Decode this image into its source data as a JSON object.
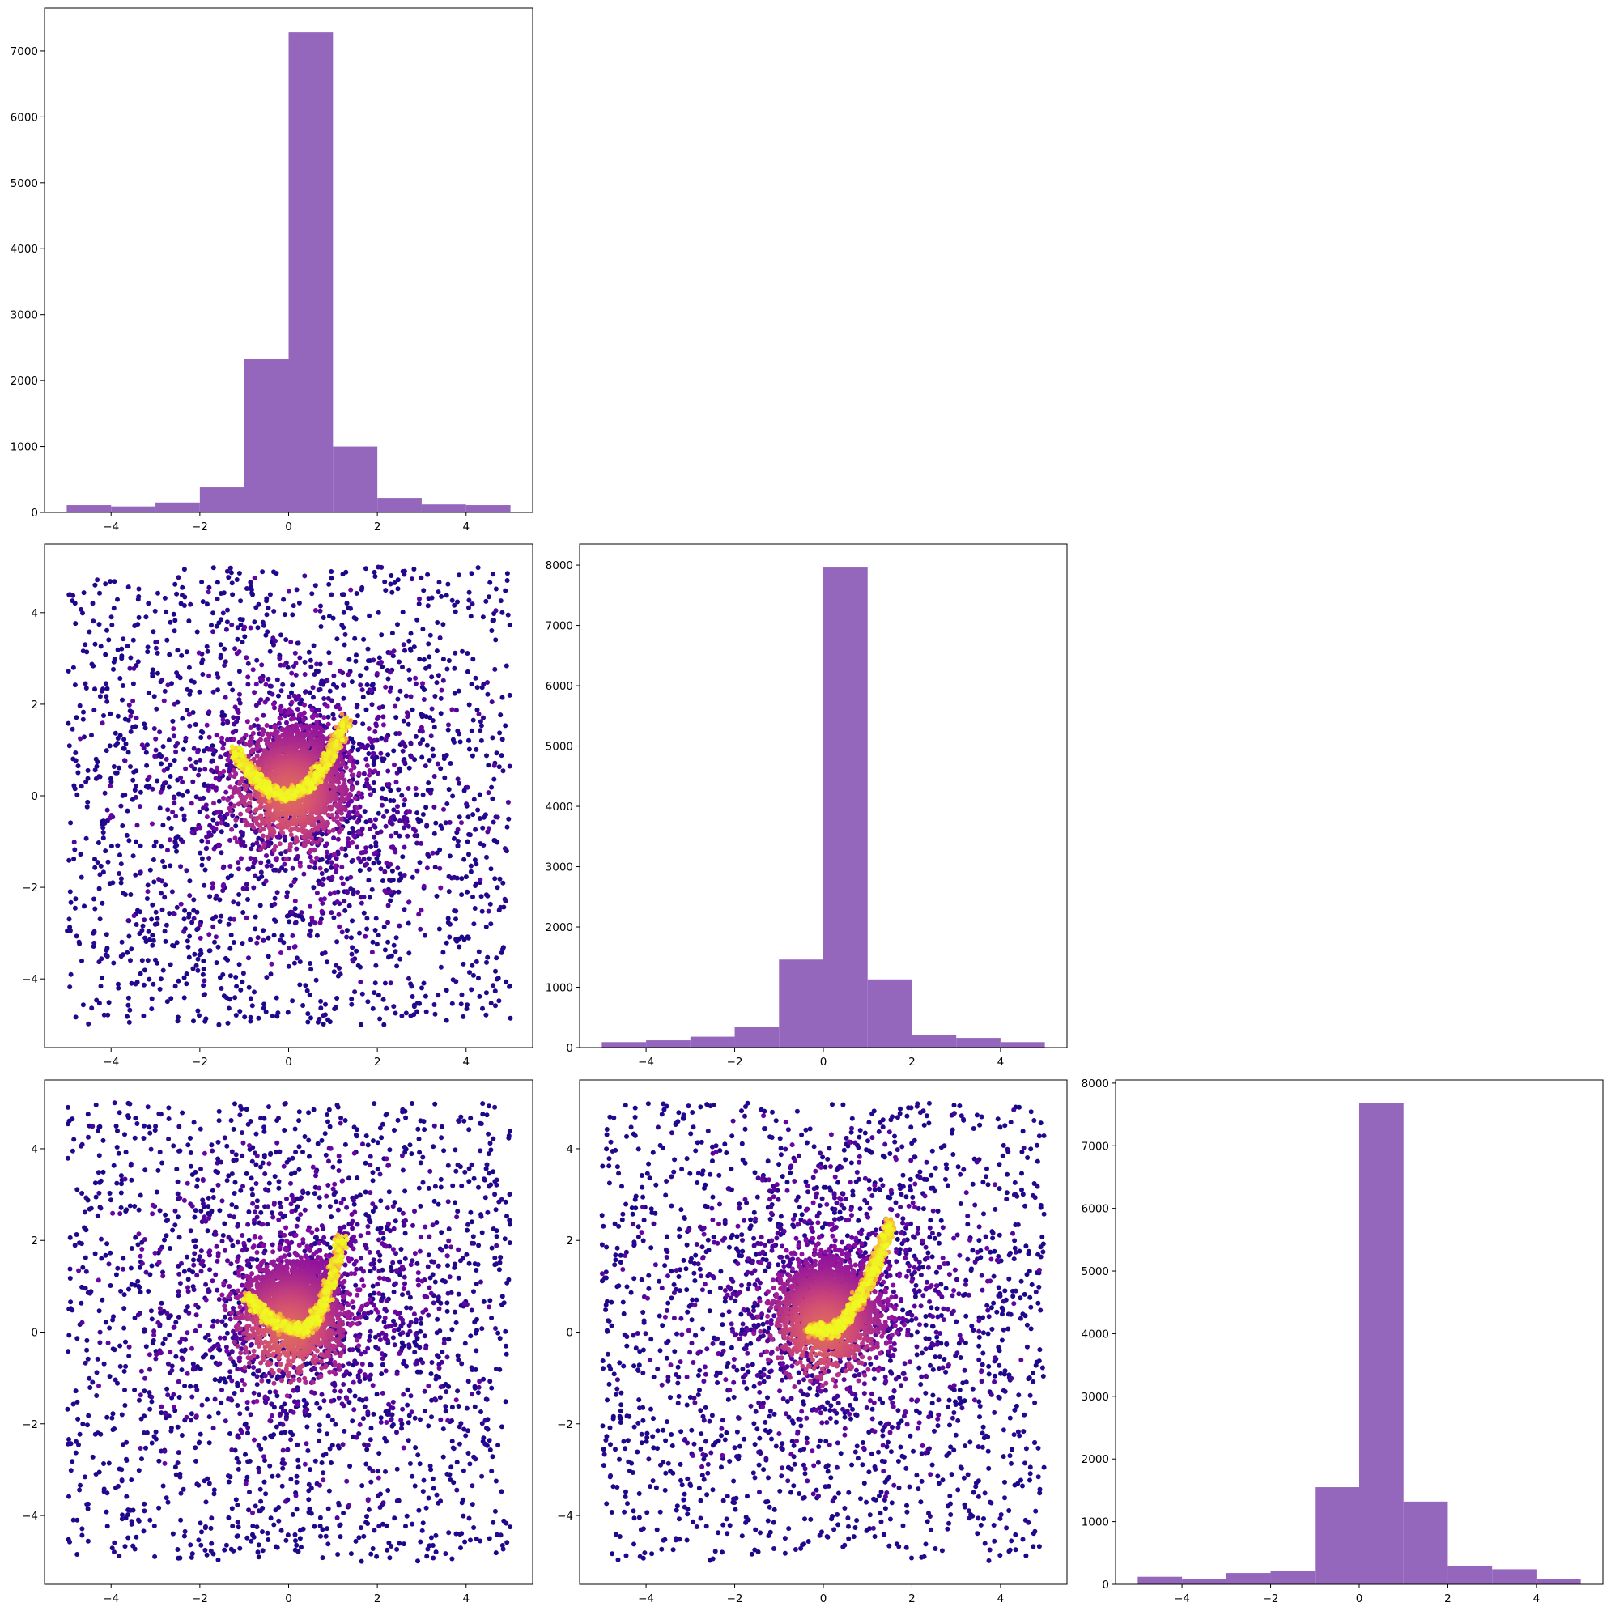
{
  "chart_data": [
    {
      "type": "bar",
      "panel": "row1-col1-histogram",
      "bin_edges": [
        -5,
        -4,
        -3,
        -2,
        -1,
        0,
        1,
        2,
        3,
        4,
        5
      ],
      "values": [
        110,
        90,
        150,
        380,
        2330,
        7280,
        1000,
        220,
        120,
        110
      ],
      "color": "#9467bd",
      "xlim": [
        -5.5,
        5.5
      ],
      "ylim": [
        0,
        7650
      ],
      "xticks": [
        -4,
        -2,
        0,
        2,
        4
      ],
      "xtick_labels": [
        "−4",
        "−2",
        "0",
        "2",
        "4"
      ],
      "yticks": [
        0,
        1000,
        2000,
        3000,
        4000,
        5000,
        6000,
        7000
      ],
      "ytick_labels": [
        "0",
        "1000",
        "2000",
        "3000",
        "4000",
        "5000",
        "6000",
        "7000"
      ]
    },
    {
      "type": "scatter",
      "panel": "row2-col1-scatter",
      "points": "≈10000 samples; uniform background over [-5,5]² plus dense core near origin and a bright curved ridge (parabola-like) ending near (1.3, 1.6)",
      "colormap": "plasma (colored by local density)",
      "ridge": {
        "x_range": [
          -1.2,
          1.3
        ],
        "curve": "y ≈ 0.9·x² for x < 0; rising to 1.6 at x = 1.3"
      },
      "xlim": [
        -5.5,
        5.5
      ],
      "ylim": [
        -5.5,
        5.5
      ],
      "xticks": [
        -4,
        -2,
        0,
        2,
        4
      ],
      "xtick_labels": [
        "−4",
        "−2",
        "0",
        "2",
        "4"
      ],
      "yticks": [
        -4,
        -2,
        0,
        2,
        4
      ],
      "ytick_labels": [
        "−4",
        "−2",
        "0",
        "2",
        "4"
      ]
    },
    {
      "type": "bar",
      "panel": "row2-col2-histogram",
      "bin_edges": [
        -5,
        -4,
        -3,
        -2,
        -1,
        0,
        1,
        2,
        3,
        4,
        5
      ],
      "values": [
        90,
        120,
        180,
        340,
        1460,
        7960,
        1130,
        210,
        160,
        90
      ],
      "color": "#9467bd",
      "xlim": [
        -5.5,
        5.5
      ],
      "ylim": [
        0,
        8350
      ],
      "xticks": [
        -4,
        -2,
        0,
        2,
        4
      ],
      "xtick_labels": [
        "−4",
        "−2",
        "0",
        "2",
        "4"
      ],
      "yticks": [
        0,
        1000,
        2000,
        3000,
        4000,
        5000,
        6000,
        7000,
        8000
      ],
      "ytick_labels": [
        "0",
        "1000",
        "2000",
        "3000",
        "4000",
        "5000",
        "6000",
        "7000",
        "8000"
      ]
    },
    {
      "type": "scatter",
      "panel": "row3-col1-scatter",
      "points": "≈10000 samples; uniform background plus dense core and bright curve ending near (1.2, 2.0)",
      "colormap": "plasma (colored by local density)",
      "xlim": [
        -5.5,
        5.5
      ],
      "ylim": [
        -5.5,
        5.5
      ],
      "xticks": [
        -4,
        -2,
        0,
        2,
        4
      ],
      "xtick_labels": [
        "−4",
        "−2",
        "0",
        "2",
        "4"
      ],
      "yticks": [
        -4,
        -2,
        0,
        2,
        4
      ],
      "ytick_labels": [
        "−4",
        "−2",
        "0",
        "2",
        "4"
      ]
    },
    {
      "type": "scatter",
      "panel": "row3-col2-scatter",
      "points": "≈10000 samples; uniform background plus dense core and bright diagonal curve ending near (1.5, 2.1)",
      "colormap": "plasma (colored by local density)",
      "xlim": [
        -5.5,
        5.5
      ],
      "ylim": [
        -5.5,
        5.5
      ],
      "xticks": [
        -4,
        -2,
        0,
        2,
        4
      ],
      "xtick_labels": [
        "−4",
        "−2",
        "0",
        "2",
        "4"
      ],
      "yticks": [
        -4,
        -2,
        0,
        2,
        4
      ],
      "ytick_labels": [
        "−4",
        "−2",
        "0",
        "2",
        "4"
      ]
    },
    {
      "type": "bar",
      "panel": "row3-col3-histogram",
      "bin_edges": [
        -5,
        -4,
        -3,
        -2,
        -1,
        0,
        1,
        2,
        3,
        4,
        5
      ],
      "values": [
        120,
        80,
        180,
        220,
        1550,
        7680,
        1320,
        290,
        240,
        80
      ],
      "color": "#9467bd",
      "xlim": [
        -5.5,
        5.5
      ],
      "ylim": [
        0,
        8050
      ],
      "xticks": [
        -4,
        -2,
        0,
        2,
        4
      ],
      "xtick_labels": [
        "−4",
        "−2",
        "0",
        "2",
        "4"
      ],
      "yticks": [
        0,
        1000,
        2000,
        3000,
        4000,
        5000,
        6000,
        7000,
        8000
      ],
      "ytick_labels": [
        "0",
        "1000",
        "2000",
        "3000",
        "4000",
        "5000",
        "6000",
        "7000",
        "8000"
      ]
    }
  ]
}
